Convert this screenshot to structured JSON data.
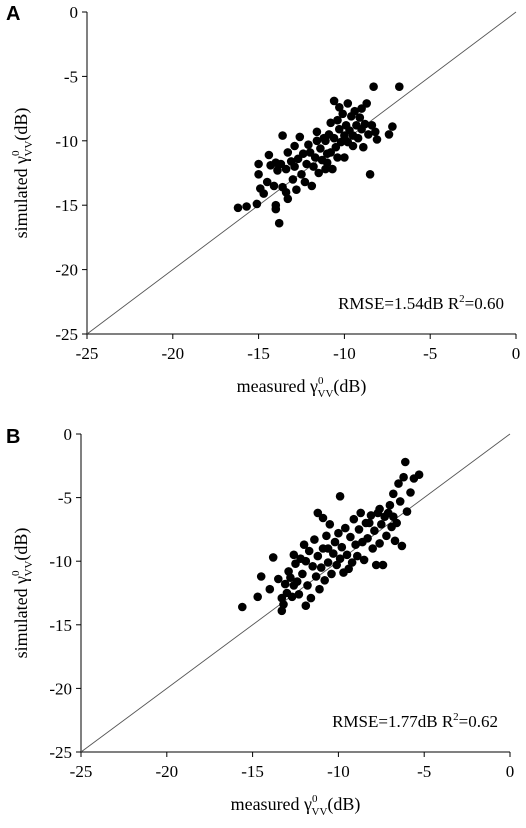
{
  "chart_data": [
    {
      "type": "scatter",
      "panel": "A",
      "xlabel": "measured γ⁰VV(dB)",
      "ylabel": "simulated γ⁰VV(dB)",
      "xlabel_parts": {
        "base": "measured ",
        "sym": "γ",
        "sup": "0",
        "sub": "VV",
        "unit": "(dB)"
      },
      "ylabel_parts": {
        "base": "simulated ",
        "sym": "γ",
        "sup": "0",
        "sub": "VV",
        "unit": "(dB)"
      },
      "xlim": [
        -25,
        0
      ],
      "ylim": [
        -25,
        0
      ],
      "xticks": [
        "-25",
        "-20",
        "-15",
        "-10",
        "-5",
        "0"
      ],
      "yticks": [
        "-25",
        "-20",
        "-15",
        "-10",
        "-5",
        "0"
      ],
      "annotation": {
        "text": "RMSE=1.54dB R",
        "sup": "2",
        "tail": "=0.60"
      },
      "reference_line": "1:1",
      "points": [
        [
          -16.2,
          -15.2
        ],
        [
          -15.7,
          -15.1
        ],
        [
          -15.1,
          -14.9
        ],
        [
          -14.9,
          -13.7
        ],
        [
          -15.0,
          -12.6
        ],
        [
          -15.0,
          -11.8
        ],
        [
          -14.7,
          -14.1
        ],
        [
          -14.5,
          -13.2
        ],
        [
          -14.3,
          -11.9
        ],
        [
          -14.4,
          -11.1
        ],
        [
          -14.1,
          -13.5
        ],
        [
          -14.0,
          -11.7
        ],
        [
          -14.0,
          -15.3
        ],
        [
          -13.9,
          -12.3
        ],
        [
          -14.0,
          -15.0
        ],
        [
          -13.8,
          -16.4
        ],
        [
          -13.7,
          -11.8
        ],
        [
          -13.6,
          -9.6
        ],
        [
          -13.6,
          -13.6
        ],
        [
          -13.4,
          -12.2
        ],
        [
          -13.4,
          -14.0
        ],
        [
          -13.3,
          -10.9
        ],
        [
          -13.3,
          -14.5
        ],
        [
          -13.1,
          -11.6
        ],
        [
          -13.0,
          -13.0
        ],
        [
          -12.9,
          -12.0
        ],
        [
          -12.9,
          -10.4
        ],
        [
          -12.8,
          -13.8
        ],
        [
          -12.7,
          -11.4
        ],
        [
          -12.6,
          -9.7
        ],
        [
          -12.5,
          -12.6
        ],
        [
          -12.4,
          -11.0
        ],
        [
          -12.3,
          -13.2
        ],
        [
          -12.2,
          -11.8
        ],
        [
          -12.1,
          -10.3
        ],
        [
          -12.0,
          -10.9
        ],
        [
          -11.9,
          -13.5
        ],
        [
          -11.8,
          -12.0
        ],
        [
          -11.7,
          -11.3
        ],
        [
          -11.6,
          -10.0
        ],
        [
          -11.6,
          -9.3
        ],
        [
          -11.5,
          -12.5
        ],
        [
          -11.4,
          -10.6
        ],
        [
          -11.3,
          -11.5
        ],
        [
          -11.2,
          -9.8
        ],
        [
          -11.1,
          -12.2
        ],
        [
          -11.1,
          -10.0
        ],
        [
          -11.0,
          -11.0
        ],
        [
          -10.9,
          -9.5
        ],
        [
          -10.8,
          -10.9
        ],
        [
          -10.8,
          -8.6
        ],
        [
          -10.7,
          -12.2
        ],
        [
          -10.6,
          -9.8
        ],
        [
          -10.5,
          -10.5
        ],
        [
          -10.4,
          -8.4
        ],
        [
          -10.4,
          -11.3
        ],
        [
          -10.3,
          -9.1
        ],
        [
          -10.2,
          -10.1
        ],
        [
          -10.1,
          -7.9
        ],
        [
          -10.0,
          -9.6
        ],
        [
          -10.0,
          -11.3
        ],
        [
          -9.9,
          -8.8
        ],
        [
          -9.8,
          -7.1
        ],
        [
          -9.8,
          -10.1
        ],
        [
          -9.7,
          -9.2
        ],
        [
          -9.6,
          -8.1
        ],
        [
          -9.5,
          -10.4
        ],
        [
          -9.5,
          -9.6
        ],
        [
          -9.4,
          -7.7
        ],
        [
          -9.3,
          -8.8
        ],
        [
          -9.2,
          -9.8
        ],
        [
          -9.1,
          -8.2
        ],
        [
          -9.0,
          -7.5
        ],
        [
          -9.0,
          -9.1
        ],
        [
          -8.9,
          -10.5
        ],
        [
          -8.8,
          -8.7
        ],
        [
          -8.7,
          -7.1
        ],
        [
          -8.6,
          -9.5
        ],
        [
          -8.5,
          -12.6
        ],
        [
          -8.4,
          -8.8
        ],
        [
          -8.3,
          -5.8
        ],
        [
          -8.2,
          -9.3
        ],
        [
          -8.1,
          -9.9
        ],
        [
          -7.4,
          -9.5
        ],
        [
          -7.2,
          -8.9
        ],
        [
          -6.8,
          -5.8
        ],
        [
          -10.3,
          -7.4
        ],
        [
          -11.0,
          -11.7
        ],
        [
          -10.6,
          -6.9
        ]
      ]
    },
    {
      "type": "scatter",
      "panel": "B",
      "xlabel": "measured γ⁰VV(dB)",
      "ylabel": "simulated γ⁰VV(dB)",
      "xlabel_parts": {
        "base": "measured ",
        "sym": "γ",
        "sup": "0",
        "sub": "VV",
        "unit": "(dB)"
      },
      "ylabel_parts": {
        "base": "simulated ",
        "sym": "γ",
        "sup": "0",
        "sub": "VV",
        "unit": "(dB)"
      },
      "xlim": [
        -25,
        0
      ],
      "ylim": [
        -25,
        0
      ],
      "xticks": [
        "-25",
        "-20",
        "-15",
        "-10",
        "-5",
        "0"
      ],
      "yticks": [
        "-25",
        "-20",
        "-15",
        "-10",
        "-5",
        "0"
      ],
      "annotation": {
        "text": "RMSE=1.77dB R",
        "sup": "2",
        "tail": "=0.62"
      },
      "reference_line": "1:1",
      "points": [
        [
          -15.6,
          -13.6
        ],
        [
          -14.7,
          -12.8
        ],
        [
          -14.5,
          -11.2
        ],
        [
          -14.0,
          -12.2
        ],
        [
          -13.8,
          -9.7
        ],
        [
          -13.5,
          -11.4
        ],
        [
          -13.3,
          -13.9
        ],
        [
          -13.3,
          -12.9
        ],
        [
          -13.2,
          -13.4
        ],
        [
          -13.1,
          -11.8
        ],
        [
          -13.0,
          -12.5
        ],
        [
          -12.9,
          -10.8
        ],
        [
          -12.8,
          -11.3
        ],
        [
          -12.7,
          -12.8
        ],
        [
          -12.6,
          -9.5
        ],
        [
          -12.5,
          -10.2
        ],
        [
          -12.4,
          -11.6
        ],
        [
          -12.3,
          -12.6
        ],
        [
          -12.2,
          -9.8
        ],
        [
          -12.1,
          -11.0
        ],
        [
          -12.0,
          -8.7
        ],
        [
          -11.9,
          -13.5
        ],
        [
          -11.9,
          -10.0
        ],
        [
          -11.8,
          -11.9
        ],
        [
          -11.7,
          -9.2
        ],
        [
          -11.6,
          -12.9
        ],
        [
          -11.5,
          -10.4
        ],
        [
          -11.4,
          -8.3
        ],
        [
          -11.3,
          -11.2
        ],
        [
          -11.2,
          -6.2
        ],
        [
          -11.2,
          -9.6
        ],
        [
          -11.1,
          -12.2
        ],
        [
          -11.0,
          -10.5
        ],
        [
          -10.9,
          -6.6
        ],
        [
          -10.9,
          -9.0
        ],
        [
          -10.8,
          -11.5
        ],
        [
          -10.7,
          -8.0
        ],
        [
          -10.6,
          -10.1
        ],
        [
          -10.5,
          -7.1
        ],
        [
          -10.4,
          -11.0
        ],
        [
          -10.3,
          -9.4
        ],
        [
          -10.2,
          -8.5
        ],
        [
          -10.1,
          -10.3
        ],
        [
          -10.0,
          -7.8
        ],
        [
          -9.9,
          -4.9
        ],
        [
          -9.9,
          -9.8
        ],
        [
          -9.8,
          -8.9
        ],
        [
          -9.7,
          -10.9
        ],
        [
          -9.6,
          -7.4
        ],
        [
          -9.5,
          -9.5
        ],
        [
          -9.3,
          -8.1
        ],
        [
          -9.2,
          -10.1
        ],
        [
          -9.1,
          -6.7
        ],
        [
          -9.0,
          -8.7
        ],
        [
          -8.9,
          -9.6
        ],
        [
          -8.8,
          -7.5
        ],
        [
          -8.7,
          -6.2
        ],
        [
          -8.6,
          -8.5
        ],
        [
          -8.5,
          -9.9
        ],
        [
          -8.4,
          -7.0
        ],
        [
          -8.3,
          -8.2
        ],
        [
          -8.1,
          -6.4
        ],
        [
          -8.0,
          -9.0
        ],
        [
          -7.9,
          -7.6
        ],
        [
          -7.8,
          -10.3
        ],
        [
          -7.7,
          -6.2
        ],
        [
          -7.6,
          -8.6
        ],
        [
          -7.5,
          -7.1
        ],
        [
          -7.4,
          -10.3
        ],
        [
          -7.3,
          -6.5
        ],
        [
          -7.2,
          -8.0
        ],
        [
          -7.1,
          -6.2
        ],
        [
          -7.0,
          -5.6
        ],
        [
          -6.9,
          -7.3
        ],
        [
          -6.8,
          -6.5
        ],
        [
          -6.8,
          -4.7
        ],
        [
          -6.7,
          -8.4
        ],
        [
          -6.6,
          -7.0
        ],
        [
          -6.5,
          -3.9
        ],
        [
          -6.4,
          -5.3
        ],
        [
          -6.3,
          -8.8
        ],
        [
          -6.2,
          -3.4
        ],
        [
          -6.1,
          -2.2
        ],
        [
          -6.0,
          -6.1
        ],
        [
          -5.8,
          -4.6
        ],
        [
          -5.6,
          -3.5
        ],
        [
          -5.3,
          -3.2
        ],
        [
          -12.6,
          -11.9
        ],
        [
          -10.6,
          -9.0
        ],
        [
          -9.4,
          -10.6
        ],
        [
          -8.2,
          -7.0
        ],
        [
          -7.6,
          -5.9
        ]
      ]
    }
  ]
}
